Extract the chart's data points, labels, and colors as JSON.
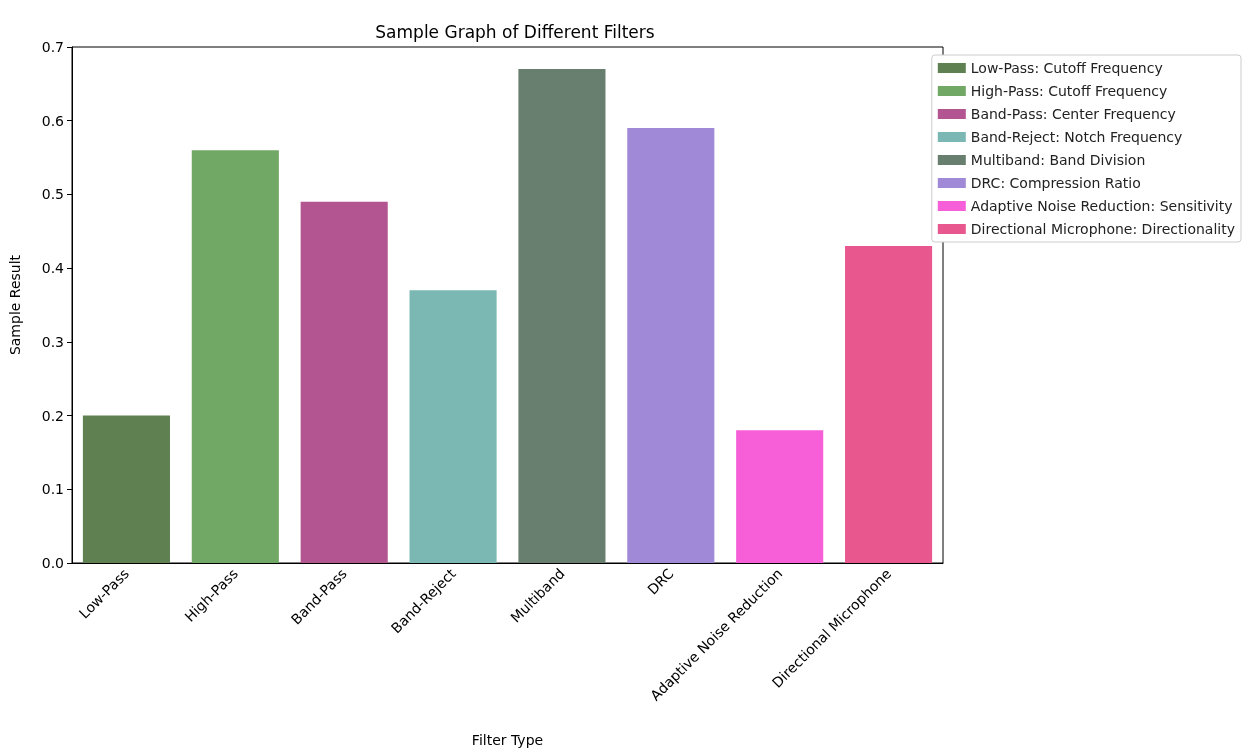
{
  "chart_data": {
    "type": "bar",
    "title": "Sample Graph of Different Filters",
    "xlabel": "Filter Type",
    "ylabel": "Sample Result",
    "categories": [
      "Low-Pass",
      "High-Pass",
      "Band-Pass",
      "Band-Reject",
      "Multiband",
      "DRC",
      "Adaptive Noise Reduction",
      "Directional Microphone"
    ],
    "series": [
      {
        "name": "Low-Pass: Cutoff Frequency",
        "color": "#5f8151",
        "values": [
          0.2,
          null,
          null,
          null,
          null,
          null,
          null,
          null
        ]
      },
      {
        "name": "High-Pass: Cutoff Frequency",
        "color": "#72a865",
        "values": [
          null,
          0.56,
          null,
          null,
          null,
          null,
          null,
          null
        ]
      },
      {
        "name": "Band-Pass: Center Frequency",
        "color": "#b35590",
        "values": [
          null,
          null,
          0.49,
          null,
          null,
          null,
          null,
          null
        ]
      },
      {
        "name": "Band-Reject: Notch Frequency",
        "color": "#7bb8b4",
        "values": [
          null,
          null,
          null,
          0.37,
          null,
          null,
          null,
          null
        ]
      },
      {
        "name": "Multiband: Band Division",
        "color": "#687f70",
        "values": [
          null,
          null,
          null,
          null,
          0.67,
          null,
          null,
          null
        ]
      },
      {
        "name": "DRC: Compression Ratio",
        "color": "#a089d6",
        "values": [
          null,
          null,
          null,
          null,
          null,
          0.59,
          null,
          null
        ]
      },
      {
        "name": "Adaptive Noise Reduction: Sensitivity",
        "color": "#f75fd8",
        "values": [
          null,
          null,
          null,
          null,
          null,
          null,
          0.18,
          null
        ]
      },
      {
        "name": "Directional Microphone: Directionality",
        "color": "#e8588e",
        "values": [
          null,
          null,
          null,
          null,
          null,
          null,
          null,
          0.43
        ]
      }
    ],
    "ylim": [
      0,
      0.7
    ],
    "yticks": [
      {
        "value": 0,
        "label": "0.0"
      },
      0.1,
      0.2,
      0.3,
      0.4,
      0.5,
      0.6,
      0.7
    ],
    "grid": false,
    "legend": "top right"
  }
}
